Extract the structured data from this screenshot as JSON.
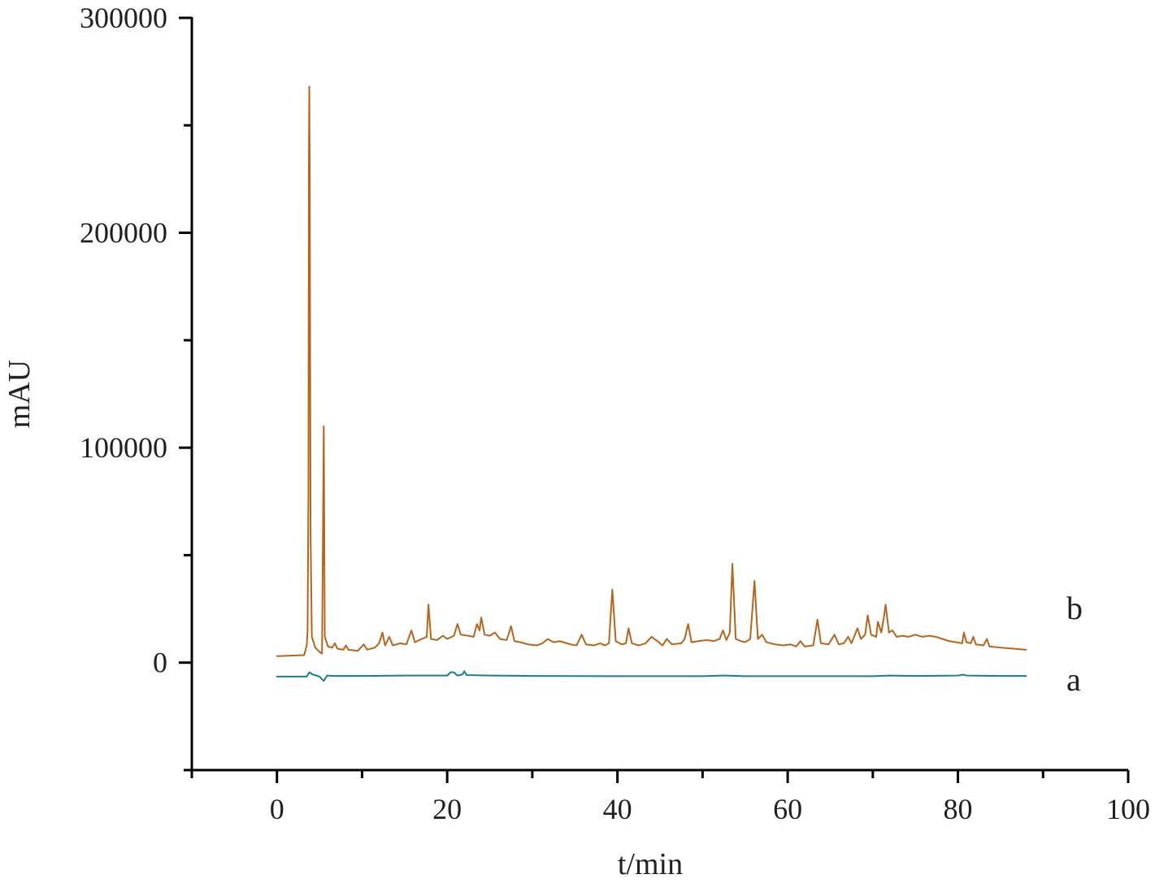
{
  "chart_data": {
    "type": "line",
    "title": "",
    "xlabel": "t/min",
    "ylabel": "mAU",
    "xlim": [
      -10,
      100
    ],
    "ylim": [
      -50000,
      300000
    ],
    "x_ticks": [
      0,
      20,
      40,
      60,
      80,
      100
    ],
    "x_tick_labels": [
      "0",
      "20",
      "40",
      "60",
      "80",
      "100"
    ],
    "y_ticks": [
      0,
      100000,
      200000,
      300000
    ],
    "y_tick_labels": [
      "0",
      "100000",
      "200000",
      "300000"
    ],
    "grid": false,
    "legend": "none",
    "series": [
      {
        "name": "b",
        "color": "#b5651d",
        "points": [
          [
            0,
            3000
          ],
          [
            3.2,
            3500
          ],
          [
            3.5,
            8000
          ],
          [
            3.6,
            15000
          ],
          [
            3.7,
            80000
          ],
          [
            3.75,
            230000
          ],
          [
            3.8,
            268000
          ],
          [
            3.85,
            230000
          ],
          [
            3.95,
            60000
          ],
          [
            4.1,
            12000
          ],
          [
            4.5,
            7000
          ],
          [
            5.0,
            5000
          ],
          [
            5.3,
            4200
          ],
          [
            5.5,
            110000
          ],
          [
            5.62,
            12000
          ],
          [
            6.0,
            7500
          ],
          [
            6.5,
            7000
          ],
          [
            6.8,
            9000
          ],
          [
            7.1,
            6500
          ],
          [
            7.8,
            6000
          ],
          [
            8.1,
            8000
          ],
          [
            8.4,
            6000
          ],
          [
            9.5,
            5500
          ],
          [
            10.2,
            8500
          ],
          [
            10.6,
            6000
          ],
          [
            11.5,
            7000
          ],
          [
            12.0,
            9000
          ],
          [
            12.4,
            14000
          ],
          [
            12.7,
            8000
          ],
          [
            13.2,
            12000
          ],
          [
            13.6,
            8000
          ],
          [
            14.5,
            9000
          ],
          [
            15.2,
            8500
          ],
          [
            15.8,
            15000
          ],
          [
            16.2,
            9500
          ],
          [
            17.0,
            11000
          ],
          [
            17.6,
            12000
          ],
          [
            17.8,
            27000
          ],
          [
            18.1,
            11000
          ],
          [
            18.8,
            10500
          ],
          [
            19.5,
            12500
          ],
          [
            20.0,
            11000
          ],
          [
            20.8,
            12500
          ],
          [
            21.2,
            18000
          ],
          [
            21.6,
            13000
          ],
          [
            22.5,
            12500
          ],
          [
            23.1,
            12000
          ],
          [
            23.5,
            18000
          ],
          [
            23.8,
            15000
          ],
          [
            24.0,
            21000
          ],
          [
            24.4,
            13000
          ],
          [
            25.0,
            12500
          ],
          [
            25.6,
            14000
          ],
          [
            26.2,
            11000
          ],
          [
            27.0,
            10500
          ],
          [
            27.5,
            17000
          ],
          [
            27.9,
            10000
          ],
          [
            28.6,
            9500
          ],
          [
            29.5,
            8500
          ],
          [
            30.5,
            8000
          ],
          [
            31.2,
            9000
          ],
          [
            31.8,
            11000
          ],
          [
            32.5,
            9500
          ],
          [
            33.2,
            10000
          ],
          [
            34.5,
            8500
          ],
          [
            35.2,
            8000
          ],
          [
            35.8,
            13000
          ],
          [
            36.3,
            8500
          ],
          [
            37.2,
            8000
          ],
          [
            38.0,
            9000
          ],
          [
            38.5,
            8000
          ],
          [
            39.0,
            9000
          ],
          [
            39.4,
            34000
          ],
          [
            39.8,
            10000
          ],
          [
            40.5,
            8500
          ],
          [
            41.0,
            9000
          ],
          [
            41.3,
            16000
          ],
          [
            41.7,
            9000
          ],
          [
            42.5,
            8000
          ],
          [
            43.3,
            9000
          ],
          [
            44.0,
            12000
          ],
          [
            44.7,
            10000
          ],
          [
            45.3,
            8000
          ],
          [
            45.8,
            11000
          ],
          [
            46.4,
            8500
          ],
          [
            47.5,
            9000
          ],
          [
            47.9,
            11000
          ],
          [
            48.3,
            18000
          ],
          [
            48.7,
            9500
          ],
          [
            49.5,
            10000
          ],
          [
            50.5,
            10500
          ],
          [
            51.3,
            10000
          ],
          [
            52.0,
            11000
          ],
          [
            52.4,
            15000
          ],
          [
            52.8,
            10500
          ],
          [
            53.2,
            14000
          ],
          [
            53.5,
            46000
          ],
          [
            53.9,
            11000
          ],
          [
            54.5,
            10000
          ],
          [
            55.0,
            9500
          ],
          [
            55.6,
            11000
          ],
          [
            56.1,
            38000
          ],
          [
            56.5,
            11000
          ],
          [
            57.0,
            13000
          ],
          [
            57.5,
            9500
          ],
          [
            58.5,
            8500
          ],
          [
            59.5,
            8000
          ],
          [
            60.3,
            8500
          ],
          [
            61.0,
            7500
          ],
          [
            61.5,
            10000
          ],
          [
            62.0,
            7500
          ],
          [
            63.0,
            8000
          ],
          [
            63.5,
            20000
          ],
          [
            63.9,
            9000
          ],
          [
            64.8,
            8500
          ],
          [
            65.5,
            13000
          ],
          [
            66.0,
            8500
          ],
          [
            66.6,
            9000
          ],
          [
            67.1,
            12000
          ],
          [
            67.5,
            9000
          ],
          [
            68.2,
            16000
          ],
          [
            68.6,
            11000
          ],
          [
            69.1,
            13000
          ],
          [
            69.4,
            22000
          ],
          [
            69.8,
            13000
          ],
          [
            70.4,
            12000
          ],
          [
            70.6,
            19000
          ],
          [
            71.0,
            14000
          ],
          [
            71.3,
            21000
          ],
          [
            71.5,
            27000
          ],
          [
            71.9,
            14000
          ],
          [
            72.3,
            15000
          ],
          [
            72.8,
            12000
          ],
          [
            73.5,
            12500
          ],
          [
            74.2,
            12000
          ],
          [
            75.0,
            13000
          ],
          [
            75.8,
            12000
          ],
          [
            76.6,
            12500
          ],
          [
            77.4,
            12000
          ],
          [
            78.2,
            11000
          ],
          [
            79.0,
            10000
          ],
          [
            79.8,
            9500
          ],
          [
            80.5,
            9000
          ],
          [
            80.7,
            14000
          ],
          [
            81.0,
            9500
          ],
          [
            81.5,
            9000
          ],
          [
            81.8,
            12000
          ],
          [
            82.1,
            8500
          ],
          [
            83.0,
            8000
          ],
          [
            83.4,
            11000
          ],
          [
            83.7,
            7500
          ],
          [
            85.0,
            7000
          ],
          [
            86.5,
            6500
          ],
          [
            88,
            6000
          ]
        ]
      },
      {
        "name": "a",
        "color": "#1a7f86",
        "points": [
          [
            0,
            -6500
          ],
          [
            3.5,
            -6500
          ],
          [
            3.8,
            -4500
          ],
          [
            4.2,
            -5500
          ],
          [
            4.6,
            -6000
          ],
          [
            5.0,
            -6500
          ],
          [
            5.5,
            -8500
          ],
          [
            5.9,
            -6000
          ],
          [
            6.5,
            -6200
          ],
          [
            10,
            -6200
          ],
          [
            15,
            -6000
          ],
          [
            20.0,
            -6000
          ],
          [
            20.4,
            -4500
          ],
          [
            20.8,
            -4500
          ],
          [
            21.2,
            -6000
          ],
          [
            21.8,
            -5500
          ],
          [
            22.0,
            -4000
          ],
          [
            22.3,
            -5800
          ],
          [
            25,
            -6000
          ],
          [
            30,
            -6200
          ],
          [
            40,
            -6300
          ],
          [
            50,
            -6300
          ],
          [
            52.5,
            -6000
          ],
          [
            55,
            -6300
          ],
          [
            60,
            -6300
          ],
          [
            70,
            -6300
          ],
          [
            72,
            -6000
          ],
          [
            75,
            -6200
          ],
          [
            80,
            -6000
          ],
          [
            80.6,
            -5600
          ],
          [
            81,
            -6000
          ],
          [
            85,
            -6200
          ],
          [
            88,
            -6200
          ]
        ]
      }
    ]
  }
}
